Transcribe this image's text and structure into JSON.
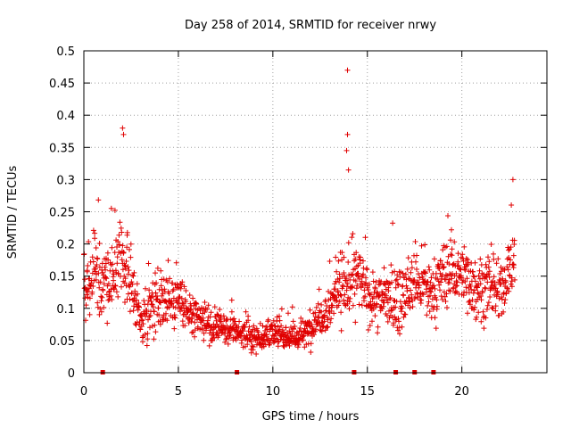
{
  "chart_data": {
    "type": "scatter",
    "title": "Day 258 of 2014, SRMTID for receiver nrwy",
    "xlabel": "GPS time / hours",
    "ylabel": "SRMTID / TECUs",
    "xlim": [
      0,
      24.5
    ],
    "ylim": [
      0,
      0.5
    ],
    "x_ticks": [
      0,
      5,
      10,
      15,
      20
    ],
    "x_tick_labels": [
      "0",
      "5",
      "10",
      "15",
      "20"
    ],
    "y_ticks": [
      0,
      0.05,
      0.1,
      0.15,
      0.2,
      0.25,
      0.3,
      0.35,
      0.4,
      0.45,
      0.5
    ],
    "y_tick_labels": [
      "0",
      "0.05",
      "0.1",
      "0.15",
      "0.2",
      "0.25",
      "0.3",
      "0.35",
      "0.4",
      "0.45",
      "0.5"
    ],
    "grid": true,
    "marker": "plus",
    "series_color": "#e00000",
    "notable_points": [
      {
        "x": 2.05,
        "y": 0.38
      },
      {
        "x": 2.1,
        "y": 0.37
      },
      {
        "x": 13.95,
        "y": 0.47
      },
      {
        "x": 13.95,
        "y": 0.37
      },
      {
        "x": 13.9,
        "y": 0.345
      },
      {
        "x": 14.0,
        "y": 0.315
      },
      {
        "x": 22.7,
        "y": 0.3
      }
    ],
    "baseline_markers_x": [
      1.0,
      8.1,
      14.3,
      16.5,
      17.5,
      18.5
    ],
    "trend_x": [
      0,
      0.5,
      1,
      1.5,
      2,
      2.5,
      3,
      3.5,
      4,
      4.5,
      5,
      5.5,
      6,
      6.5,
      7,
      7.5,
      8,
      8.5,
      9,
      9.5,
      10,
      10.5,
      11,
      11.5,
      12,
      12.5,
      13,
      13.5,
      14,
      14.5,
      15,
      15.5,
      16,
      16.5,
      17,
      17.5,
      18,
      18.5,
      19,
      19.5,
      20,
      20.5,
      21,
      21.5,
      22,
      22.5,
      22.8
    ],
    "trend_y": [
      0.12,
      0.16,
      0.13,
      0.15,
      0.18,
      0.14,
      0.08,
      0.1,
      0.12,
      0.11,
      0.12,
      0.09,
      0.08,
      0.075,
      0.07,
      0.065,
      0.065,
      0.06,
      0.055,
      0.055,
      0.06,
      0.06,
      0.055,
      0.055,
      0.07,
      0.09,
      0.1,
      0.14,
      0.13,
      0.15,
      0.12,
      0.11,
      0.12,
      0.11,
      0.12,
      0.14,
      0.13,
      0.12,
      0.15,
      0.16,
      0.15,
      0.14,
      0.13,
      0.13,
      0.12,
      0.16,
      0.17
    ],
    "spread_y": [
      0.04,
      0.07,
      0.05,
      0.06,
      0.06,
      0.05,
      0.03,
      0.04,
      0.05,
      0.04,
      0.04,
      0.035,
      0.03,
      0.025,
      0.025,
      0.02,
      0.02,
      0.02,
      0.02,
      0.02,
      0.02,
      0.02,
      0.02,
      0.02,
      0.025,
      0.03,
      0.035,
      0.05,
      0.05,
      0.05,
      0.04,
      0.04,
      0.045,
      0.05,
      0.045,
      0.045,
      0.045,
      0.045,
      0.05,
      0.055,
      0.05,
      0.05,
      0.045,
      0.045,
      0.045,
      0.05,
      0.05
    ],
    "point_count": 1500,
    "x_range_data": [
      0,
      22.8
    ]
  }
}
